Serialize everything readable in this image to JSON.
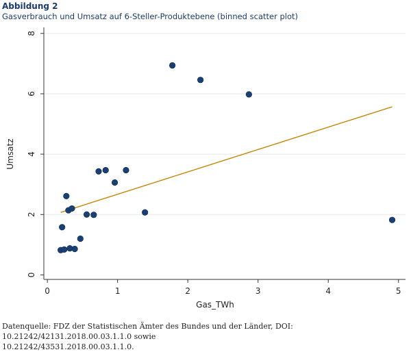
{
  "figure": {
    "label": "Abbildung 2",
    "title": "Gasverbrauch und Umsatz auf 6-Steller-Produktebene (binned scatter plot)",
    "source_line1": "Datenquelle: FDZ der Statistischen Ämter des Bundes und der Länder, DOI: 10.21242/42131.2018.00.03.1.1.0 sowie",
    "source_line2": "10.21242/43531.2018.00.03.1.1.0."
  },
  "chart_data": {
    "type": "scatter",
    "title": "",
    "xlabel": "Gas_TWh",
    "ylabel": "Umsatz",
    "xlim": [
      -0.05,
      5.1
    ],
    "ylim": [
      -0.15,
      8.2
    ],
    "xticks": [
      0,
      1,
      2,
      3,
      4,
      5
    ],
    "yticks": [
      0,
      2,
      4,
      6,
      8
    ],
    "grid": true,
    "legend": "none",
    "colors": {
      "points": "#1a3f73",
      "fit_line": "#c8860a",
      "grid": "#e6e6e6"
    },
    "points": [
      {
        "x": 0.19,
        "y": 0.82
      },
      {
        "x": 0.24,
        "y": 0.84
      },
      {
        "x": 0.32,
        "y": 0.88
      },
      {
        "x": 0.39,
        "y": 0.86
      },
      {
        "x": 0.47,
        "y": 1.2
      },
      {
        "x": 0.21,
        "y": 1.58
      },
      {
        "x": 0.56,
        "y": 2.0
      },
      {
        "x": 0.66,
        "y": 1.99
      },
      {
        "x": 0.3,
        "y": 2.14
      },
      {
        "x": 0.35,
        "y": 2.2
      },
      {
        "x": 0.27,
        "y": 2.61
      },
      {
        "x": 0.73,
        "y": 3.43
      },
      {
        "x": 0.83,
        "y": 3.47
      },
      {
        "x": 0.96,
        "y": 3.06
      },
      {
        "x": 1.12,
        "y": 3.47
      },
      {
        "x": 1.39,
        "y": 2.07
      },
      {
        "x": 1.78,
        "y": 6.94
      },
      {
        "x": 2.18,
        "y": 6.46
      },
      {
        "x": 2.87,
        "y": 5.98
      },
      {
        "x": 4.91,
        "y": 1.82
      }
    ],
    "fit_line": {
      "x": [
        0.19,
        4.91
      ],
      "y": [
        2.07,
        5.57
      ]
    }
  }
}
